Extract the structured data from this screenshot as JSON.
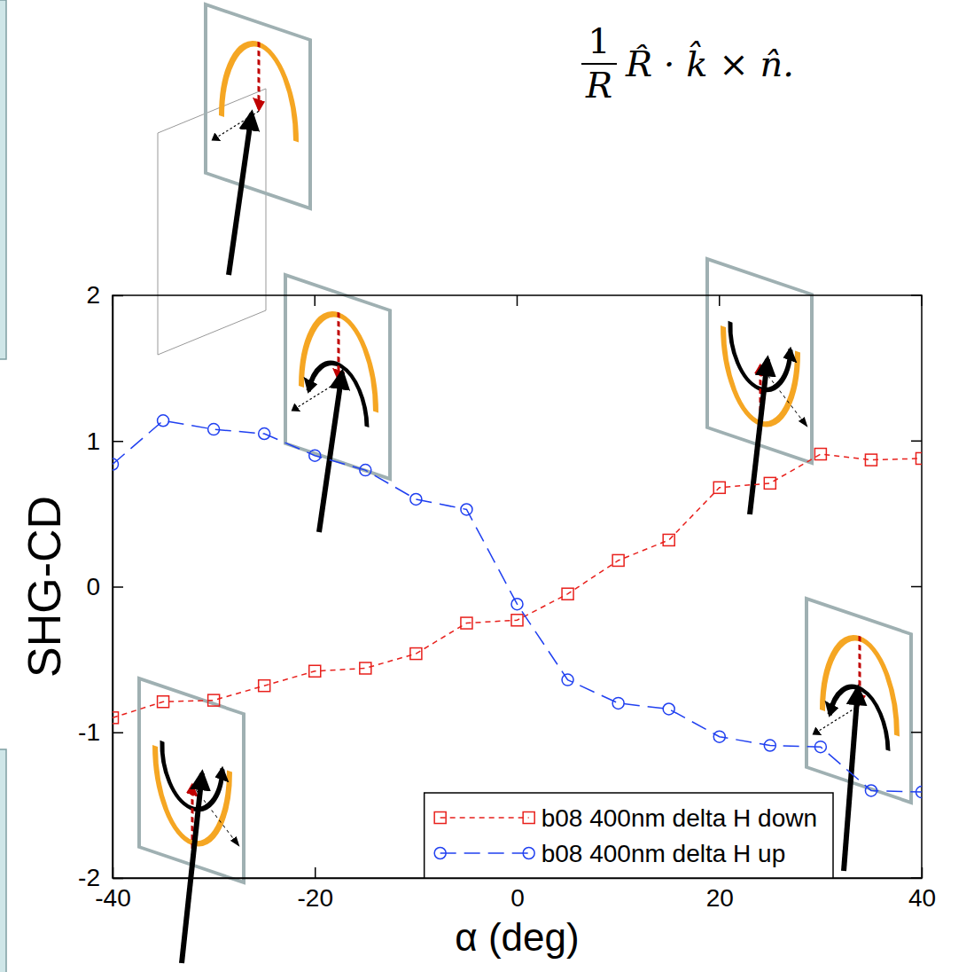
{
  "chart_data": {
    "type": "line",
    "annotation": {
      "fraction": [
        "1",
        "R"
      ],
      "expression": "R̂ · k̂ × n̂."
    },
    "x_label": "α (deg)",
    "y_label": "SHG-CD",
    "x": [
      -40,
      -35,
      -30,
      -25,
      -20,
      -15,
      -10,
      -5,
      0,
      5,
      10,
      15,
      20,
      25,
      30,
      35,
      40
    ],
    "xlim": [
      -40,
      40
    ],
    "xticks": [
      -40,
      -20,
      0,
      20,
      40
    ],
    "ylim": [
      -2,
      2
    ],
    "yticks": [
      -2,
      -1,
      0,
      1,
      2
    ],
    "grid": false,
    "legend": "lower right",
    "series": [
      {
        "name": "b08 400nm delta H down",
        "color": "#e8201c",
        "marker": "square",
        "line_style": "dashed",
        "values": [
          -0.9,
          -0.79,
          -0.78,
          -0.68,
          -0.58,
          -0.56,
          -0.46,
          -0.25,
          -0.23,
          -0.05,
          0.18,
          0.32,
          0.68,
          0.71,
          0.91,
          0.87,
          0.88
        ]
      },
      {
        "name": "b08 400nm delta H up",
        "color": "#2040f0",
        "marker": "circle",
        "line_style": "long_dashed",
        "values": [
          0.84,
          1.14,
          1.08,
          1.05,
          0.9,
          0.8,
          0.6,
          0.53,
          -0.12,
          -0.64,
          -0.8,
          -0.84,
          -1.03,
          -1.09,
          -1.1,
          -1.4,
          -1.41
        ]
      }
    ]
  }
}
